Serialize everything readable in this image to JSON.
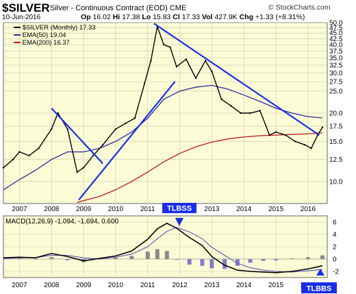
{
  "header": {
    "symbol": "$SILVER",
    "name": "Silver - Continuous Contract (EOD)",
    "exchange": "CME",
    "date": "10-Jun-2016",
    "open_label": "Op",
    "open": "16.02",
    "high_label": "Hi",
    "high": "17.38",
    "low_label": "Lo",
    "low": "15.83",
    "close_label": "Cl",
    "close": "17.33",
    "vol_label": "Vol",
    "vol": "427.9K",
    "chg_label": "Chg",
    "chg": "+1.33 (+8.31%)",
    "brand": "© StockCharts.com"
  },
  "legend": {
    "price": "$SILVER (Monthly) 17.33",
    "ema50": "EMA(50) 19.04",
    "ema200": "EMA(200) 16.37",
    "macd": "MACD(12,26,9) -1.094, -1.694, 0.600"
  },
  "annotations": {
    "tlbss_top": "TLBSS",
    "tlbbs_bottom": "TLBBS"
  },
  "colors": {
    "panel_bg": "#fbfbd6",
    "grid": "#c9c9a8",
    "price": "#000000",
    "ema50": "#2a2aa0",
    "ema200": "#c01818",
    "trendline": "#1a2ee8",
    "macd": "#000000",
    "signal": "#5a5ab8",
    "hist_pos": "#8a8a8a",
    "hist_neg": "#8080c8",
    "callout_bg": "#1a2ee8",
    "callout_text": "#ffffff"
  },
  "chart_data": [
    {
      "type": "line",
      "yscale": "log",
      "ylim": [
        8,
        50
      ],
      "xlim": [
        2006.5,
        2016.6
      ],
      "x_ticks": [
        "2007",
        "2008",
        "2009",
        "2010",
        "2011",
        "2012",
        "2013",
        "2014",
        "2015",
        "2016"
      ],
      "y_ticks": [
        10.0,
        12.5,
        15.0,
        17.5,
        20.0,
        25.0,
        27.5,
        30.0,
        32.5,
        35.0,
        37.5,
        40.0,
        42.5,
        45.0,
        47.5,
        50.0
      ],
      "series": [
        {
          "name": "$SILVER (Monthly)",
          "x": [
            2006.5,
            2006.8,
            2007.0,
            2007.3,
            2007.6,
            2008.0,
            2008.2,
            2008.5,
            2008.8,
            2009.0,
            2009.3,
            2009.6,
            2010.0,
            2010.3,
            2010.6,
            2010.9,
            2011.1,
            2011.3,
            2011.5,
            2011.7,
            2011.9,
            2012.2,
            2012.5,
            2012.8,
            2013.0,
            2013.3,
            2013.6,
            2013.9,
            2014.2,
            2014.5,
            2014.8,
            2015.0,
            2015.3,
            2015.6,
            2015.9,
            2016.1,
            2016.3,
            2016.45
          ],
          "values": [
            11.5,
            12.5,
            13.5,
            13.0,
            14.0,
            17.0,
            20.0,
            17.0,
            11.0,
            11.5,
            13.0,
            14.5,
            17.0,
            18.0,
            19.0,
            27.0,
            34.0,
            48.0,
            40.0,
            39.0,
            32.0,
            34.5,
            28.5,
            34.0,
            30.5,
            23.0,
            21.5,
            20.0,
            20.0,
            20.5,
            16.0,
            16.5,
            16.0,
            15.0,
            14.5,
            14.0,
            16.0,
            17.33
          ]
        },
        {
          "name": "EMA(50)",
          "x": [
            2006.5,
            2007.0,
            2007.5,
            2008.0,
            2008.5,
            2009.0,
            2009.5,
            2010.0,
            2010.5,
            2011.0,
            2011.5,
            2012.0,
            2012.5,
            2013.0,
            2013.5,
            2014.0,
            2014.5,
            2015.0,
            2015.5,
            2016.0,
            2016.45
          ],
          "values": [
            9.2,
            10.2,
            11.2,
            12.5,
            13.5,
            13.5,
            14.0,
            15.0,
            16.5,
            19.0,
            23.0,
            25.0,
            26.0,
            26.5,
            25.5,
            24.0,
            22.5,
            21.0,
            20.0,
            19.3,
            19.04
          ]
        },
        {
          "name": "EMA(200)",
          "x": [
            2008.8,
            2009.5,
            2010.0,
            2010.5,
            2011.0,
            2011.5,
            2012.0,
            2012.5,
            2013.0,
            2013.5,
            2014.0,
            2014.5,
            2015.0,
            2015.5,
            2016.0,
            2016.45
          ],
          "values": [
            8.1,
            8.6,
            9.2,
            10.0,
            11.0,
            12.2,
            13.3,
            14.2,
            14.9,
            15.4,
            15.7,
            15.9,
            16.0,
            16.1,
            16.2,
            16.37
          ]
        }
      ],
      "trendlines": [
        {
          "x": [
            2008.0,
            2009.6
          ],
          "values": [
            21.0,
            12.0
          ]
        },
        {
          "x": [
            2008.85,
            2011.85
          ],
          "values": [
            8.3,
            27.5
          ]
        },
        {
          "x": [
            2011.2,
            2016.35
          ],
          "values": [
            49.5,
            16.0
          ]
        }
      ]
    },
    {
      "type": "line",
      "ylim": [
        -3,
        7
      ],
      "y_ticks": [
        -2,
        0,
        2,
        4,
        6
      ],
      "series": [
        {
          "name": "MACD",
          "x": [
            2006.5,
            2007.0,
            2007.5,
            2008.0,
            2008.5,
            2009.0,
            2009.5,
            2010.0,
            2010.5,
            2011.0,
            2011.3,
            2011.6,
            2011.9,
            2012.3,
            2012.7,
            2013.0,
            2013.4,
            2013.8,
            2014.2,
            2014.6,
            2015.0,
            2015.5,
            2016.0,
            2016.45
          ],
          "values": [
            0.2,
            0.3,
            0.2,
            0.9,
            0.4,
            -0.3,
            0.1,
            0.5,
            1.3,
            3.2,
            4.9,
            5.8,
            5.0,
            3.5,
            2.2,
            0.4,
            -1.0,
            -1.8,
            -2.0,
            -2.1,
            -2.2,
            -2.0,
            -1.6,
            -1.094
          ]
        },
        {
          "name": "Signal",
          "x": [
            2006.5,
            2007.0,
            2007.5,
            2008.0,
            2008.5,
            2009.0,
            2009.5,
            2010.0,
            2010.5,
            2011.0,
            2011.3,
            2011.6,
            2011.9,
            2012.3,
            2012.7,
            2013.0,
            2013.4,
            2013.8,
            2014.2,
            2014.6,
            2015.0,
            2015.5,
            2016.0,
            2016.45
          ],
          "values": [
            0.1,
            0.2,
            0.25,
            0.6,
            0.6,
            0.2,
            0.0,
            0.3,
            0.8,
            2.0,
            3.3,
            4.5,
            5.1,
            4.4,
            3.3,
            1.9,
            0.6,
            -0.7,
            -1.4,
            -1.8,
            -2.0,
            -2.1,
            -1.9,
            -1.694
          ]
        },
        {
          "name": "Histogram",
          "x": [
            2007.0,
            2007.5,
            2008.0,
            2008.5,
            2009.0,
            2009.5,
            2010.0,
            2010.5,
            2011.0,
            2011.3,
            2011.6,
            2011.9,
            2012.3,
            2012.7,
            2013.0,
            2013.4,
            2013.8,
            2014.2,
            2014.6,
            2015.0,
            2015.5,
            2016.0,
            2016.45
          ],
          "values": [
            0.1,
            -0.05,
            0.3,
            -0.2,
            -0.5,
            0.1,
            0.2,
            0.5,
            1.2,
            1.6,
            1.3,
            -0.1,
            -0.9,
            -1.1,
            -1.5,
            -1.6,
            -1.1,
            -0.6,
            -0.3,
            -0.2,
            0.1,
            0.3,
            0.6
          ]
        }
      ]
    }
  ]
}
